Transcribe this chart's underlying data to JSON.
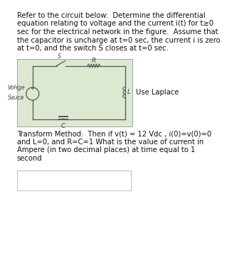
{
  "page_bg": "#ffffff",
  "title_text_lines": [
    "Refer to the circuit below:  Determine the differential",
    "equation relating to voltage and the current i(t) for t≥0",
    "sec for the electrical network in the figure.  Assume that",
    "the capacitor is uncharge at t=0 sec, the current i is zero",
    "at t=0, and the switch S closes at t=0 sec."
  ],
  "circuit_bg": "#dce8d0",
  "use_laplace_text": "Use Laplace",
  "voltage_label_1": "VoHge",
  "voltage_label_2": "Sauce",
  "switch_label": "S",
  "R_label": "R",
  "L_label": "L",
  "C_label": "C",
  "plus_label": "+",
  "bottom_text_lines": [
    "Transform Method:  Then if v(t) = 12 Vdc , i(0)=v(0)=0",
    "and L=0, and R=C=1 What is the value of current in",
    "Ampere (in two decimal places) at time equal to 1",
    "second"
  ],
  "answer_box_color": "#ffffff",
  "answer_box_border": "#bbbbbb",
  "font_size_main": 7.2,
  "font_size_circuit": 6.5,
  "font_size_label": 6.0
}
